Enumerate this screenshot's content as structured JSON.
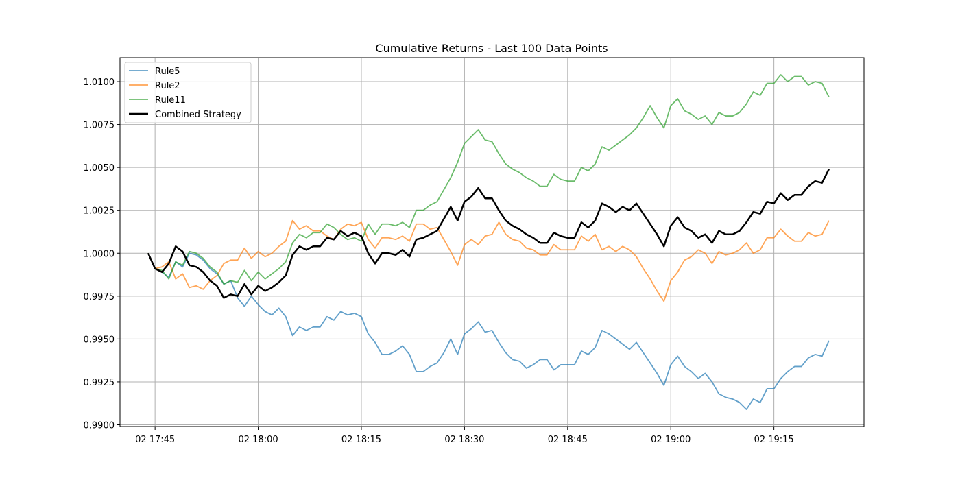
{
  "chart_data": {
    "type": "line",
    "title": "Cumulative Returns - Last 100 Data Points",
    "xlabel": "",
    "ylabel": "",
    "x_ticks": [
      "02 17:45",
      "02 18:00",
      "02 18:15",
      "02 18:30",
      "02 18:45",
      "02 19:00",
      "02 19:15"
    ],
    "x_tick_minutes": [
      45,
      60,
      75,
      90,
      105,
      120,
      135
    ],
    "x_start_minute": 44,
    "x_step_minutes": 1,
    "xlim_minutes": [
      39.9,
      148.1
    ],
    "y_ticks": [
      "0.9900",
      "0.9925",
      "0.9950",
      "0.9975",
      "1.0000",
      "1.0025",
      "1.0050",
      "1.0075",
      "1.0100"
    ],
    "ylim": [
      0.9899,
      1.0114
    ],
    "grid": true,
    "legend_position": "top-left",
    "series": [
      {
        "name": "Rule5",
        "color": "#1f77b4",
        "alpha": 0.7,
        "values": [
          1.0,
          0.9991,
          0.9989,
          0.9986,
          0.9995,
          0.9992,
          1.0,
          0.9999,
          0.9996,
          0.9991,
          0.9988,
          0.9982,
          0.9984,
          0.9974,
          0.9969,
          0.9975,
          0.997,
          0.9966,
          0.9964,
          0.9968,
          0.9963,
          0.9952,
          0.9957,
          0.9955,
          0.9957,
          0.9957,
          0.9963,
          0.9961,
          0.9966,
          0.9964,
          0.9965,
          0.9963,
          0.9953,
          0.9948,
          0.9941,
          0.9941,
          0.9943,
          0.9946,
          0.9941,
          0.9931,
          0.9931,
          0.9934,
          0.9936,
          0.9942,
          0.995,
          0.9941,
          0.9953,
          0.9956,
          0.996,
          0.9954,
          0.9955,
          0.9948,
          0.9942,
          0.9938,
          0.9937,
          0.9933,
          0.9935,
          0.9938,
          0.9938,
          0.9932,
          0.9935,
          0.9935,
          0.9935,
          0.9943,
          0.9941,
          0.9945,
          0.9955,
          0.9953,
          0.995,
          0.9947,
          0.9944,
          0.9948,
          0.9942,
          0.9936,
          0.993,
          0.9923,
          0.9935,
          0.994,
          0.9934,
          0.9931,
          0.9927,
          0.993,
          0.9925,
          0.9918,
          0.9916,
          0.9915,
          0.9913,
          0.9909,
          0.9915,
          0.9913,
          0.9921,
          0.9921,
          0.9927,
          0.9931,
          0.9934,
          0.9934,
          0.9939,
          0.9941,
          0.994,
          0.9949
        ]
      },
      {
        "name": "Rule2",
        "color": "#ff7f0e",
        "alpha": 0.7,
        "values": [
          1.0,
          0.9991,
          0.9992,
          0.9995,
          0.9985,
          0.9988,
          0.998,
          0.9981,
          0.9979,
          0.9984,
          0.9987,
          0.9994,
          0.9996,
          0.9996,
          1.0003,
          0.9997,
          1.0001,
          0.9998,
          1.0,
          1.0004,
          1.0007,
          1.0019,
          1.0014,
          1.0016,
          1.0013,
          1.0013,
          1.001,
          1.0008,
          1.0014,
          1.0017,
          1.0016,
          1.0018,
          1.0008,
          1.0003,
          1.0009,
          1.0009,
          1.0008,
          1.001,
          1.0007,
          1.0017,
          1.0017,
          1.0014,
          1.0015,
          1.0008,
          1.0001,
          0.9993,
          1.0005,
          1.0008,
          1.0005,
          1.001,
          1.0011,
          1.0018,
          1.0011,
          1.0008,
          1.0007,
          1.0003,
          1.0002,
          0.9999,
          0.9999,
          1.0005,
          1.0002,
          1.0002,
          1.0002,
          1.001,
          1.0007,
          1.0011,
          1.0002,
          1.0004,
          1.0001,
          1.0004,
          1.0002,
          0.9998,
          0.9991,
          0.9985,
          0.9978,
          0.9972,
          0.9984,
          0.9989,
          0.9996,
          0.9998,
          1.0002,
          1.0,
          0.9994,
          1.0001,
          0.9999,
          1.0,
          1.0002,
          1.0006,
          1.0,
          1.0002,
          1.0009,
          1.0009,
          1.0014,
          1.001,
          1.0007,
          1.0007,
          1.0012,
          1.001,
          1.0011,
          1.0019
        ]
      },
      {
        "name": "Rule11",
        "color": "#2ca02c",
        "alpha": 0.7,
        "values": [
          1.0,
          0.9991,
          0.999,
          0.9985,
          0.9995,
          0.9993,
          1.0001,
          1.0,
          0.9997,
          0.9992,
          0.9989,
          0.9982,
          0.9984,
          0.9983,
          0.999,
          0.9984,
          0.9989,
          0.9985,
          0.9988,
          0.9991,
          0.9995,
          1.0006,
          1.0011,
          1.0009,
          1.0012,
          1.0012,
          1.0017,
          1.0015,
          1.0011,
          1.0008,
          1.0009,
          1.0007,
          1.0017,
          1.0011,
          1.0017,
          1.0017,
          1.0016,
          1.0018,
          1.0015,
          1.0025,
          1.0025,
          1.0028,
          1.003,
          1.0037,
          1.0044,
          1.0053,
          1.0064,
          1.0068,
          1.0072,
          1.0066,
          1.0065,
          1.0058,
          1.0052,
          1.0049,
          1.0047,
          1.0044,
          1.0042,
          1.0039,
          1.0039,
          1.0046,
          1.0043,
          1.0042,
          1.0042,
          1.005,
          1.0048,
          1.0052,
          1.0062,
          1.006,
          1.0063,
          1.0066,
          1.0069,
          1.0073,
          1.0079,
          1.0086,
          1.0079,
          1.0073,
          1.0086,
          1.009,
          1.0083,
          1.0081,
          1.0078,
          1.008,
          1.0075,
          1.0082,
          1.008,
          1.008,
          1.0082,
          1.0087,
          1.0094,
          1.0092,
          1.0099,
          1.0099,
          1.0104,
          1.01,
          1.0103,
          1.0103,
          1.0098,
          1.01,
          1.0099,
          1.0091
        ]
      },
      {
        "name": "Combined Strategy",
        "color": "#000000",
        "alpha": 1,
        "values": [
          1.0,
          0.9991,
          0.9989,
          0.9994,
          1.0004,
          1.0001,
          0.9993,
          0.9992,
          0.9989,
          0.9984,
          0.9981,
          0.9974,
          0.9976,
          0.9975,
          0.9982,
          0.9976,
          0.9981,
          0.9978,
          0.998,
          0.9983,
          0.9987,
          0.9999,
          1.0004,
          1.0002,
          1.0004,
          1.0004,
          1.0009,
          1.0008,
          1.0013,
          1.001,
          1.0012,
          1.001,
          1.0,
          0.9994,
          1.0,
          1.0,
          0.9999,
          1.0002,
          0.9998,
          1.0008,
          1.0009,
          1.0011,
          1.0013,
          1.002,
          1.0027,
          1.0019,
          1.003,
          1.0033,
          1.0038,
          1.0032,
          1.0032,
          1.0025,
          1.0019,
          1.0016,
          1.0014,
          1.0011,
          1.0009,
          1.0006,
          1.0006,
          1.0012,
          1.001,
          1.0009,
          1.0009,
          1.0018,
          1.0015,
          1.0019,
          1.0029,
          1.0027,
          1.0024,
          1.0027,
          1.0025,
          1.0029,
          1.0023,
          1.0017,
          1.0011,
          1.0004,
          1.0016,
          1.0021,
          1.0015,
          1.0013,
          1.0009,
          1.0011,
          1.0006,
          1.0013,
          1.0011,
          1.0011,
          1.0013,
          1.0018,
          1.0024,
          1.0023,
          1.003,
          1.0029,
          1.0035,
          1.0031,
          1.0034,
          1.0034,
          1.0039,
          1.0042,
          1.0041,
          1.0049
        ]
      }
    ]
  }
}
